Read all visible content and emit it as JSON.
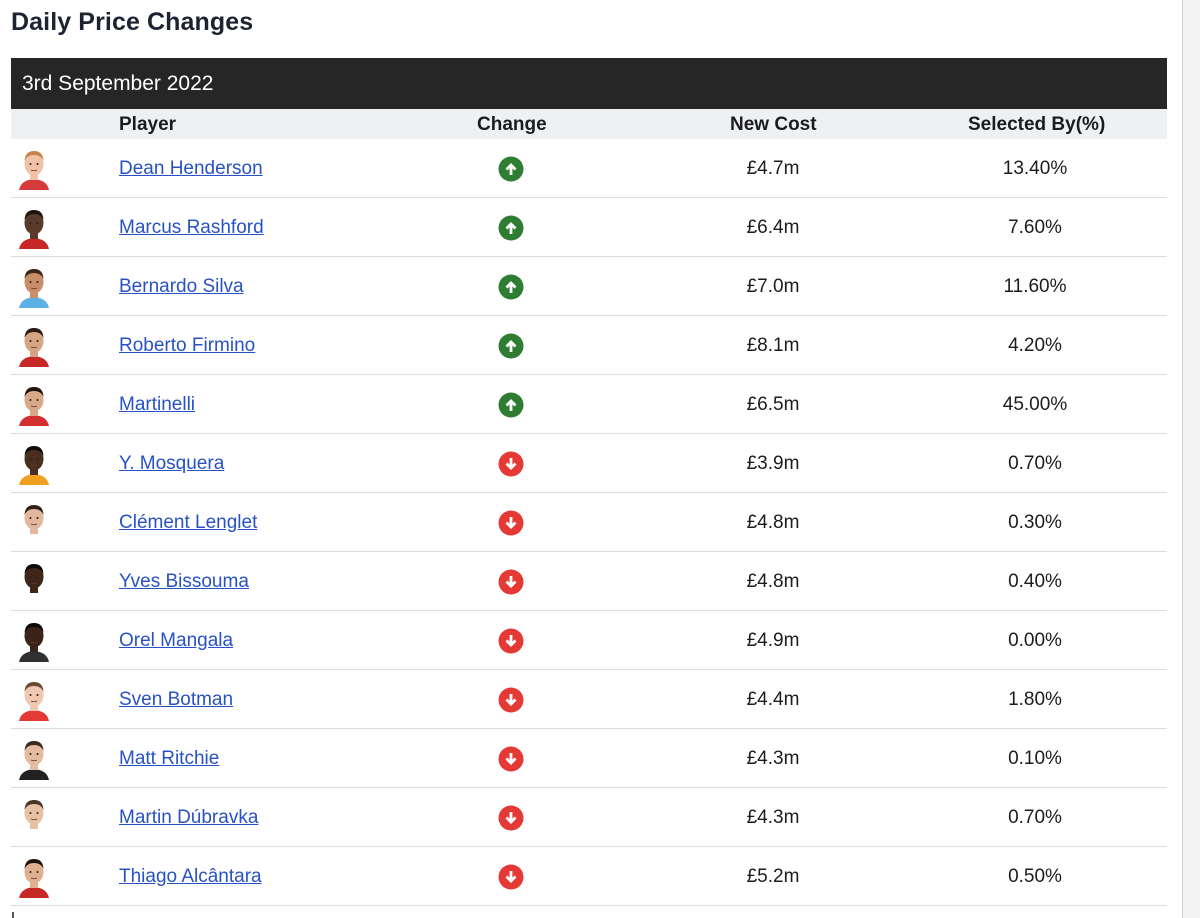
{
  "page": {
    "title": "Daily Price Changes",
    "date": "3rd September 2022"
  },
  "table": {
    "headers": {
      "player": "Player",
      "change": "Change",
      "new_cost": "New Cost",
      "selected_by": "Selected By(%)"
    },
    "rows": [
      {
        "player": "Dean Henderson",
        "change": "up",
        "new_cost": "£4.7m",
        "selected_by": "13.40%",
        "skin": "#f0c2a8",
        "hair": "#c9844e",
        "shirt": "#d63b3b"
      },
      {
        "player": "Marcus Rashford",
        "change": "up",
        "new_cost": "£6.4m",
        "selected_by": "7.60%",
        "skin": "#5a3a2a",
        "hair": "#1e1410",
        "shirt": "#c62828"
      },
      {
        "player": "Bernardo Silva",
        "change": "up",
        "new_cost": "£7.0m",
        "selected_by": "11.60%",
        "skin": "#c98e68",
        "hair": "#3b2418",
        "shirt": "#5cb0e6"
      },
      {
        "player": "Roberto Firmino",
        "change": "up",
        "new_cost": "£8.1m",
        "selected_by": "4.20%",
        "skin": "#d8a584",
        "hair": "#2a1a12",
        "shirt": "#c62828"
      },
      {
        "player": "Martinelli",
        "change": "up",
        "new_cost": "£6.5m",
        "selected_by": "45.00%",
        "skin": "#d8a888",
        "hair": "#20140e",
        "shirt": "#d32f2f"
      },
      {
        "player": "Y. Mosquera",
        "change": "down",
        "new_cost": "£3.9m",
        "selected_by": "0.70%",
        "skin": "#4a2e20",
        "hair": "#120c08",
        "shirt": "#f0a020"
      },
      {
        "player": "Clément Lenglet",
        "change": "down",
        "new_cost": "£4.8m",
        "selected_by": "0.30%",
        "skin": "#e2b89c",
        "hair": "#2e2018",
        "shirt": "#ffffff"
      },
      {
        "player": "Yves Bissouma",
        "change": "down",
        "new_cost": "£4.8m",
        "selected_by": "0.40%",
        "skin": "#3e2618",
        "hair": "#0e0a08",
        "shirt": "#ffffff"
      },
      {
        "player": "Orel Mangala",
        "change": "down",
        "new_cost": "£4.9m",
        "selected_by": "0.00%",
        "skin": "#3a2418",
        "hair": "#0c0806",
        "shirt": "#303030"
      },
      {
        "player": "Sven Botman",
        "change": "down",
        "new_cost": "£4.4m",
        "selected_by": "1.80%",
        "skin": "#f0c8b0",
        "hair": "#6a4a30",
        "shirt": "#e53935"
      },
      {
        "player": "Matt Ritchie",
        "change": "down",
        "new_cost": "£4.3m",
        "selected_by": "0.10%",
        "skin": "#e6bca0",
        "hair": "#3a2a1e",
        "shirt": "#222222"
      },
      {
        "player": "Martin Dúbravka",
        "change": "down",
        "new_cost": "£4.3m",
        "selected_by": "0.70%",
        "skin": "#e8c0a4",
        "hair": "#4a3424",
        "shirt": "#ffffff"
      },
      {
        "player": "Thiago Alcântara",
        "change": "down",
        "new_cost": "£5.2m",
        "selected_by": "0.50%",
        "skin": "#e0b090",
        "hair": "#1e140e",
        "shirt": "#c62828"
      }
    ]
  },
  "colors": {
    "up": "#2e7d32",
    "down": "#e53935",
    "link": "#2852c4",
    "date_bar": "#262626",
    "header_bg": "#eef1f4"
  },
  "icons": {
    "up": "arrow-up-circle-icon",
    "down": "arrow-down-circle-icon"
  }
}
